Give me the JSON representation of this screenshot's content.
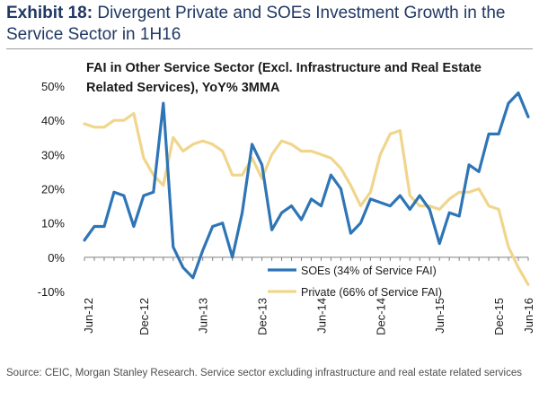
{
  "exhibit": {
    "label": "Exhibit 18:",
    "title": "Divergent Private and SOEs Investment Growth in the Service Sector in 1H16"
  },
  "source": "Source: CEIC, Morgan Stanley Research. Service sector excluding infrastructure and real estate related services",
  "colors": {
    "soe": "#2e75b6",
    "private": "#f0d68c",
    "title": "#1f3864"
  },
  "chart_data": {
    "type": "line",
    "title_lines": [
      "FAI in Other Service Sector (Excl. Infrastructure and Real Estate",
      "Related Services), YoY% 3MMA"
    ],
    "x_tick_labels": [
      "Jun-12",
      "Dec-12",
      "Jun-13",
      "Dec-13",
      "Jun-14",
      "Dec-14",
      "Jun-15",
      "Dec-15",
      "Jun-16"
    ],
    "y_tick_labels": [
      "50%",
      "40%",
      "30%",
      "20%",
      "10%",
      "0%",
      "-10%"
    ],
    "ylim": [
      -10,
      50
    ],
    "y_ticks": [
      50,
      40,
      30,
      20,
      10,
      0,
      -10
    ],
    "x_start": "2012-06",
    "x_end": "2016-06",
    "grid": false,
    "legend_position": "bottom-right",
    "series": [
      {
        "name": "SOEs (34% of Service FAI)",
        "color": "#2e75b6",
        "values": [
          5,
          9,
          9,
          19,
          18,
          9,
          18,
          19,
          45,
          3,
          -3,
          -6,
          2,
          9,
          10,
          0,
          13,
          33,
          27,
          8,
          13,
          15,
          11,
          17,
          15,
          24,
          20,
          7,
          10,
          17,
          16,
          15,
          18,
          14,
          18,
          14,
          4,
          13,
          12,
          27,
          25,
          36,
          36,
          45,
          48,
          41
        ]
      },
      {
        "name": "Private (66% of Service FAI)",
        "color": "#f0d68c",
        "values": [
          39,
          38,
          38,
          40,
          40,
          42,
          29,
          24,
          21,
          35,
          31,
          33,
          34,
          33,
          31,
          24,
          24,
          29,
          23,
          30,
          34,
          33,
          31,
          31,
          30,
          29,
          26,
          21,
          15,
          19,
          30,
          36,
          37,
          18,
          15,
          15,
          14,
          17,
          19,
          19,
          20,
          15,
          14,
          3,
          -3,
          -8
        ]
      }
    ]
  }
}
